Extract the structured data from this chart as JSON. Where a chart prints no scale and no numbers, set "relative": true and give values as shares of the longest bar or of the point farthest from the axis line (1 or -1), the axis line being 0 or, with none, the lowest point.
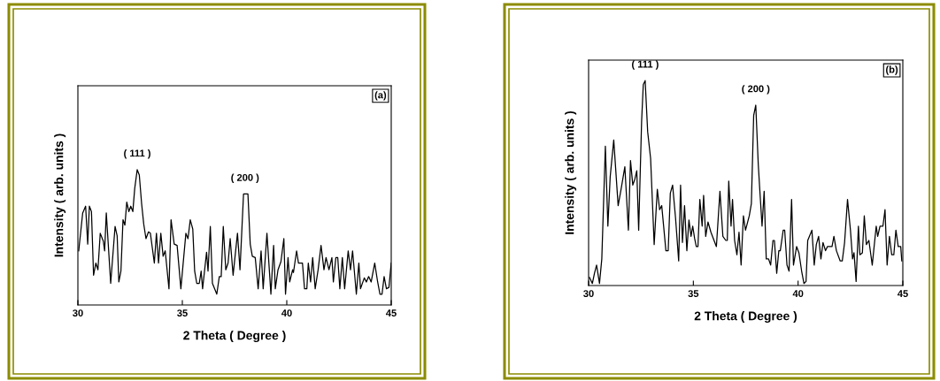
{
  "chart_data": [
    {
      "type": "line",
      "relative": true,
      "xlabel": "2 Theta ( Degree )",
      "ylabel": "Intensity ( arb. units )",
      "xlim": [
        30,
        45
      ],
      "xticks": [
        30,
        35,
        40,
        45
      ],
      "tick_labels": "x",
      "grid": false,
      "marker": "none",
      "line_style": "solid",
      "annotations": [
        {
          "text": "( 111 )",
          "x": 32.84,
          "y": 1.0
        },
        {
          "text": "( 200 )",
          "x": 38.0,
          "y": 0.82
        },
        "(a)"
      ],
      "series": [
        {
          "color": "#000000",
          "x": [
            30.04,
            30.23,
            30.37,
            30.47,
            30.55,
            30.65,
            30.75,
            30.86,
            30.96,
            31.07,
            31.22,
            31.28,
            31.36,
            31.57,
            31.78,
            31.88,
            31.96,
            32.06,
            32.16,
            32.25,
            32.34,
            32.44,
            32.53,
            32.63,
            32.72,
            32.84,
            32.94,
            33.05,
            33.15,
            33.26,
            33.38,
            33.47,
            33.66,
            33.76,
            33.86,
            33.97,
            34.08,
            34.18,
            34.36,
            34.46,
            34.61,
            34.75,
            34.93,
            35.17,
            35.27,
            35.38,
            35.5,
            35.59,
            35.69,
            35.81,
            35.9,
            35.97,
            36.16,
            36.23,
            36.34,
            36.44,
            36.65,
            36.77,
            36.86,
            36.96,
            37.08,
            37.19,
            37.29,
            37.43,
            37.64,
            37.76,
            37.93,
            38.14,
            38.25,
            38.35,
            38.49,
            38.63,
            38.77,
            38.87,
            39.05,
            39.24,
            39.37,
            39.45,
            39.58,
            39.72,
            39.86,
            39.94,
            40.06,
            40.14,
            40.28,
            40.32,
            40.47,
            40.56,
            40.75,
            40.85,
            40.96,
            41.03,
            41.14,
            41.24,
            41.36,
            41.5,
            41.64,
            41.78,
            41.88,
            42.02,
            42.16,
            42.23,
            42.35,
            42.44,
            42.54,
            42.66,
            42.77,
            42.94,
            43.05,
            43.15,
            43.33,
            43.45,
            43.53,
            43.71,
            43.81,
            43.92,
            44.04,
            44.21,
            44.35,
            44.46,
            44.56,
            44.66,
            44.77,
            44.89,
            45.0
          ],
          "values": [
            0.4,
            0.68,
            0.73,
            0.45,
            0.73,
            0.69,
            0.22,
            0.31,
            0.26,
            0.53,
            0.47,
            0.4,
            0.68,
            0.16,
            0.58,
            0.51,
            0.17,
            0.25,
            0.63,
            0.59,
            0.76,
            0.69,
            0.73,
            0.69,
            0.86,
            1.0,
            0.96,
            0.75,
            0.6,
            0.49,
            0.54,
            0.53,
            0.31,
            0.53,
            0.31,
            0.53,
            0.36,
            0.4,
            0.12,
            0.63,
            0.45,
            0.44,
            0.12,
            0.53,
            0.49,
            0.63,
            0.56,
            0.25,
            0.16,
            0.16,
            0.25,
            0.12,
            0.39,
            0.25,
            0.58,
            0.16,
            0.08,
            0.21,
            0.21,
            0.58,
            0.26,
            0.31,
            0.49,
            0.22,
            0.53,
            0.26,
            0.82,
            0.82,
            0.45,
            0.36,
            0.35,
            0.12,
            0.4,
            0.12,
            0.53,
            0.08,
            0.44,
            0.12,
            0.26,
            0.32,
            0.49,
            0.08,
            0.35,
            0.17,
            0.26,
            0.24,
            0.4,
            0.31,
            0.31,
            0.12,
            0.12,
            0.31,
            0.17,
            0.35,
            0.12,
            0.26,
            0.44,
            0.26,
            0.35,
            0.26,
            0.35,
            0.17,
            0.35,
            0.35,
            0.12,
            0.35,
            0.12,
            0.4,
            0.26,
            0.4,
            0.08,
            0.31,
            0.12,
            0.2,
            0.17,
            0.21,
            0.17,
            0.31,
            0.17,
            0.08,
            0.08,
            0.21,
            0.12,
            0.13,
            0.31
          ]
        }
      ]
    },
    {
      "type": "line",
      "relative": true,
      "xlabel": "2 Theta ( Degree )",
      "ylabel": "Intensity ( arb. units )",
      "xlim": [
        30,
        45
      ],
      "xticks": [
        30,
        35,
        40,
        45
      ],
      "tick_labels": "x",
      "grid": false,
      "marker": "none",
      "line_style": "solid",
      "annotations": [
        {
          "text": "( 111 )",
          "x": 32.7,
          "y": 1.0
        },
        {
          "text": "( 200 )",
          "x": 37.98,
          "y": 0.88
        },
        "(b)"
      ],
      "series": [
        {
          "color": "#000000",
          "x": [
            30.04,
            30.18,
            30.28,
            30.38,
            30.52,
            30.63,
            30.8,
            30.92,
            31.03,
            31.2,
            31.41,
            31.55,
            31.73,
            31.79,
            31.9,
            32.0,
            32.11,
            32.21,
            32.3,
            32.39,
            32.53,
            32.61,
            32.7,
            32.82,
            32.96,
            33.13,
            33.28,
            33.39,
            33.49,
            33.69,
            33.8,
            33.9,
            34.01,
            34.15,
            34.3,
            34.39,
            34.48,
            34.58,
            34.69,
            34.79,
            34.89,
            34.97,
            35.06,
            35.14,
            35.22,
            35.31,
            35.42,
            35.49,
            35.59,
            35.7,
            35.84,
            36.1,
            36.27,
            36.41,
            36.55,
            36.62,
            36.69,
            36.8,
            36.87,
            36.97,
            37.08,
            37.18,
            37.28,
            37.39,
            37.49,
            37.67,
            37.77,
            37.88,
            37.98,
            38.1,
            38.17,
            38.28,
            38.38,
            38.48,
            38.59,
            38.69,
            38.8,
            38.87,
            38.98,
            39.08,
            39.15,
            39.29,
            39.36,
            39.47,
            39.57,
            39.69,
            39.78,
            39.93,
            40.04,
            40.17,
            40.28,
            40.38,
            40.46,
            40.66,
            40.77,
            40.87,
            40.98,
            41.09,
            41.19,
            41.31,
            41.4,
            41.52,
            41.62,
            41.71,
            41.83,
            42.01,
            42.11,
            42.22,
            42.36,
            42.5,
            42.6,
            42.67,
            42.77,
            42.88,
            42.95,
            43.07,
            43.16,
            43.26,
            43.38,
            43.54,
            43.73,
            43.8,
            43.91,
            44.05,
            44.15,
            44.25,
            44.36,
            44.47,
            44.57,
            44.67,
            44.78,
            44.9,
            44.95
          ],
          "values": [
            0.04,
            0.01,
            0.06,
            0.1,
            0.01,
            0.13,
            0.68,
            0.29,
            0.53,
            0.71,
            0.39,
            0.47,
            0.58,
            0.47,
            0.27,
            0.61,
            0.49,
            0.52,
            0.56,
            0.27,
            0.8,
            0.98,
            1.0,
            0.75,
            0.62,
            0.2,
            0.47,
            0.37,
            0.39,
            0.17,
            0.17,
            0.45,
            0.49,
            0.33,
            0.12,
            0.49,
            0.21,
            0.39,
            0.17,
            0.32,
            0.24,
            0.29,
            0.23,
            0.19,
            0.19,
            0.42,
            0.29,
            0.44,
            0.24,
            0.31,
            0.26,
            0.19,
            0.46,
            0.24,
            0.22,
            0.22,
            0.51,
            0.29,
            0.42,
            0.22,
            0.15,
            0.26,
            0.1,
            0.34,
            0.27,
            0.34,
            0.4,
            0.83,
            0.88,
            0.59,
            0.47,
            0.29,
            0.46,
            0.13,
            0.13,
            0.1,
            0.22,
            0.22,
            0.06,
            0.17,
            0.17,
            0.27,
            0.27,
            0.1,
            0.07,
            0.42,
            0.1,
            0.19,
            0.16,
            0.07,
            0.01,
            0.02,
            0.22,
            0.27,
            0.1,
            0.2,
            0.24,
            0.13,
            0.21,
            0.17,
            0.19,
            0.19,
            0.19,
            0.24,
            0.17,
            0.12,
            0.12,
            0.21,
            0.42,
            0.27,
            0.13,
            0.16,
            0.02,
            0.29,
            0.15,
            0.16,
            0.34,
            0.2,
            0.22,
            0.1,
            0.29,
            0.24,
            0.29,
            0.29,
            0.37,
            0.1,
            0.24,
            0.15,
            0.15,
            0.27,
            0.19,
            0.19,
            0.12
          ]
        }
      ]
    }
  ]
}
